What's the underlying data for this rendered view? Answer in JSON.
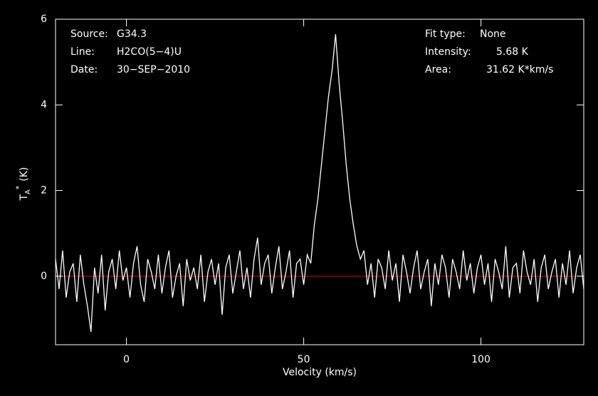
{
  "chart_data": {
    "type": "line",
    "x_label": "Velocity (km/s)",
    "y_label": {
      "main": "T",
      "sub": "A",
      "sup": "*",
      "unit": "(K)"
    },
    "annotations_left": [
      {
        "key": "Source:",
        "value": "G34.3"
      },
      {
        "key": "Line:",
        "value": "H2CO(5−4)U"
      },
      {
        "key": "Date:",
        "value": "30−SEP−2010"
      }
    ],
    "annotations_right": [
      {
        "key": "Fit type:",
        "value": "None"
      },
      {
        "key": "Intensity:",
        "value": "5.68 K"
      },
      {
        "key": "Area:",
        "value": "31.62 K*km/s"
      }
    ],
    "x": [
      -20,
      -19,
      -18,
      -17,
      -16,
      -15,
      -14,
      -13,
      -12,
      -11,
      -10,
      -9,
      -8,
      -7,
      -6,
      -5,
      -4,
      -3,
      -2,
      -1,
      0,
      1,
      2,
      3,
      4,
      5,
      6,
      7,
      8,
      9,
      10,
      11,
      12,
      13,
      14,
      15,
      16,
      17,
      18,
      19,
      20,
      21,
      22,
      23,
      24,
      25,
      26,
      27,
      28,
      29,
      30,
      31,
      32,
      33,
      34,
      35,
      36,
      37,
      38,
      39,
      40,
      41,
      42,
      43,
      44,
      45,
      46,
      47,
      48,
      49,
      50,
      51,
      52,
      53,
      54,
      55,
      56,
      57,
      58,
      59,
      60,
      61,
      62,
      63,
      64,
      65,
      66,
      67,
      68,
      69,
      70,
      71,
      72,
      73,
      74,
      75,
      76,
      77,
      78,
      79,
      80,
      81,
      82,
      83,
      84,
      85,
      86,
      87,
      88,
      89,
      90,
      91,
      92,
      93,
      94,
      95,
      96,
      97,
      98,
      99,
      100,
      101,
      102,
      103,
      104,
      105,
      106,
      107,
      108,
      109,
      110,
      111,
      112,
      113,
      114,
      115,
      116,
      117,
      118,
      119,
      120,
      121,
      122,
      123,
      124,
      125,
      126,
      127,
      128,
      129
    ],
    "series": [
      {
        "color": "#ffffff",
        "values": [
          0.4,
          -0.3,
          0.6,
          -0.5,
          0.1,
          0.3,
          -0.6,
          0.5,
          -0.2,
          -0.7,
          -1.3,
          0.2,
          -0.4,
          0.5,
          -0.8,
          0.1,
          0.4,
          -0.3,
          0.6,
          -0.1,
          0.2,
          -0.5,
          0.3,
          0.7,
          -0.2,
          -0.6,
          0.4,
          0.1,
          -0.3,
          0.5,
          -0.4,
          0.2,
          0.6,
          -0.5,
          0.0,
          0.3,
          -0.7,
          0.4,
          -0.1,
          0.2,
          -0.3,
          0.5,
          -0.6,
          0.1,
          0.4,
          -0.2,
          0.3,
          -0.9,
          0.2,
          0.5,
          -0.4,
          0.1,
          0.6,
          -0.3,
          0.2,
          -0.5,
          0.4,
          0.9,
          -0.2,
          0.3,
          0.5,
          -0.4,
          0.2,
          0.7,
          -0.3,
          0.1,
          0.6,
          -0.5,
          0.3,
          0.4,
          -0.2,
          0.5,
          0.3,
          1.2,
          1.8,
          2.6,
          3.4,
          4.2,
          4.8,
          5.65,
          4.5,
          3.6,
          2.6,
          1.8,
          1.2,
          0.7,
          0.4,
          0.6,
          -0.2,
          0.3,
          -0.5,
          0.4,
          0.2,
          -0.3,
          0.6,
          -0.1,
          0.3,
          -0.6,
          0.5,
          0.1,
          -0.4,
          0.2,
          0.6,
          -0.3,
          0.1,
          0.4,
          -0.7,
          0.3,
          -0.2,
          0.5,
          0.2,
          -0.5,
          0.4,
          0.1,
          -0.3,
          0.6,
          -0.1,
          0.3,
          -0.4,
          0.2,
          0.5,
          -0.2,
          0.3,
          -0.6,
          0.4,
          0.1,
          -0.3,
          0.7,
          -0.5,
          0.2,
          0.3,
          -0.4,
          0.6,
          0.1,
          -0.2,
          0.4,
          -0.6,
          0.2,
          0.5,
          -0.3,
          0.1,
          0.4,
          -0.5,
          0.3,
          -0.2,
          0.6,
          -0.4,
          0.2,
          0.5,
          -0.3
        ]
      }
    ],
    "baseline": {
      "value": 0,
      "color": "#cc0000"
    },
    "xlim": [
      -20,
      129
    ],
    "ylim": [
      -1.6,
      6
    ],
    "xticks": [
      0,
      50,
      100
    ],
    "yticks": [
      0,
      2,
      4,
      6
    ],
    "frame_color": "#ffffff"
  }
}
